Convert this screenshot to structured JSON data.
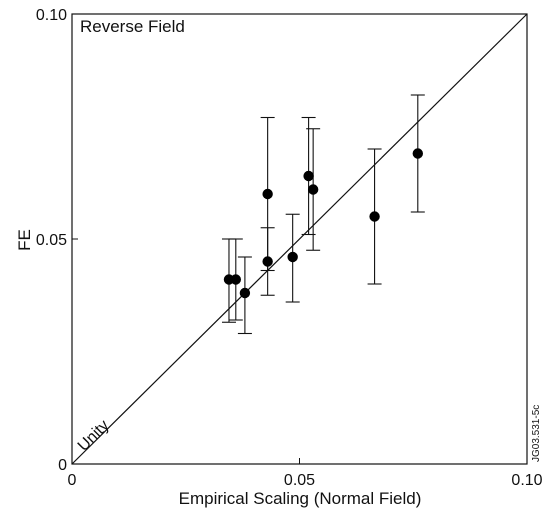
{
  "chart_data": {
    "type": "scatter",
    "title": "Reverse Field",
    "xlabel": "Empirical Scaling (Normal Field)",
    "ylabel": "FE",
    "xlim": [
      0,
      0.1
    ],
    "ylim": [
      0,
      0.1
    ],
    "x_ticks": [
      "0",
      "0.05",
      "0.10"
    ],
    "y_ticks": [
      "0",
      "0.05",
      "0.10"
    ],
    "grid": false,
    "reference_line": {
      "label": "Unity",
      "from": [
        0,
        0
      ],
      "to": [
        0.1,
        0.1
      ]
    },
    "figure_ref": "JG03.531-5c",
    "series": [
      {
        "points": [
          {
            "x": 0.0345,
            "y": 0.041,
            "ylow": 0.0315,
            "yhigh": 0.05
          },
          {
            "x": 0.036,
            "y": 0.041,
            "ylow": 0.032,
            "yhigh": 0.05
          },
          {
            "x": 0.038,
            "y": 0.038,
            "ylow": 0.029,
            "yhigh": 0.046
          },
          {
            "x": 0.043,
            "y": 0.06,
            "ylow": 0.043,
            "yhigh": 0.077
          },
          {
            "x": 0.043,
            "y": 0.045,
            "ylow": 0.0375,
            "yhigh": 0.0525
          },
          {
            "x": 0.0485,
            "y": 0.046,
            "ylow": 0.036,
            "yhigh": 0.0555
          },
          {
            "x": 0.052,
            "y": 0.064,
            "ylow": 0.051,
            "yhigh": 0.077
          },
          {
            "x": 0.053,
            "y": 0.061,
            "ylow": 0.0475,
            "yhigh": 0.0745
          },
          {
            "x": 0.0665,
            "y": 0.055,
            "ylow": 0.04,
            "yhigh": 0.07
          },
          {
            "x": 0.076,
            "y": 0.069,
            "ylow": 0.056,
            "yhigh": 0.082
          }
        ]
      }
    ]
  }
}
